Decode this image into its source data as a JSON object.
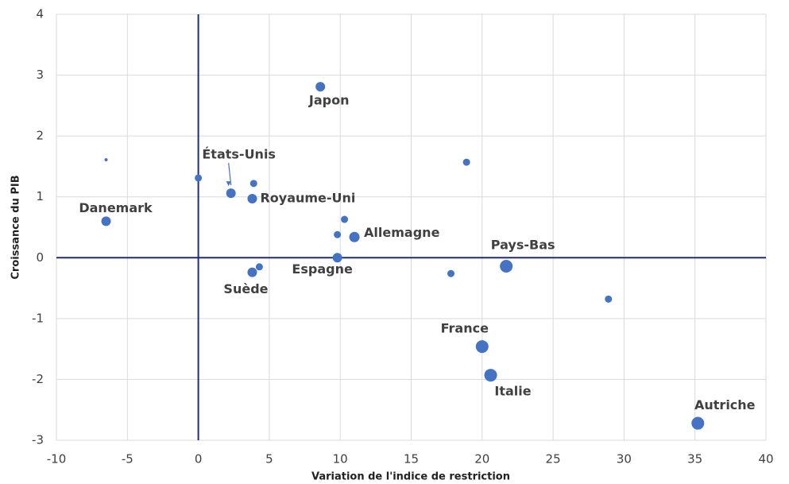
{
  "chart_data": {
    "type": "bubble",
    "x_label": "Variation de l'indice de restriction",
    "y_label": "Croissance du PIB",
    "x": [
      -6.5,
      -6.5,
      0,
      2.3,
      3.9,
      3.8,
      8.6,
      10.3,
      9.8,
      11.0,
      9.8,
      4.3,
      3.8,
      18.9,
      17.8,
      21.7,
      28.9,
      20.0,
      20.6,
      35.2
    ],
    "y": [
      0.6,
      1.61,
      1.31,
      1.06,
      1.22,
      0.97,
      2.81,
      0.63,
      0.38,
      0.34,
      0.0,
      -0.15,
      -0.24,
      1.57,
      -0.26,
      -0.14,
      -0.68,
      -1.46,
      -1.93,
      -2.72
    ],
    "sizes": [
      6,
      2,
      4.5,
      6,
      4.5,
      6,
      6,
      4.5,
      4.5,
      6.5,
      6,
      4.5,
      6,
      4.5,
      4.5,
      8,
      4.5,
      8,
      8,
      8
    ],
    "labels": [
      "Danemark",
      null,
      null,
      "États-Unis",
      null,
      "Royaume-Uni",
      "Japon",
      null,
      null,
      "Allemagne",
      "Espagne",
      null,
      "Suède",
      null,
      null,
      "Pays-Bas",
      null,
      "France",
      "Italie",
      "Autriche"
    ],
    "color": "#4472c4",
    "xlim": [
      -10,
      40
    ],
    "xticks": [
      -10,
      -5,
      0,
      5,
      10,
      15,
      20,
      25,
      30,
      35,
      40
    ],
    "ylim": [
      -3,
      4
    ],
    "yticks": [
      -3,
      -2,
      -1,
      0,
      1,
      2,
      3,
      4
    ],
    "grid": true
  }
}
